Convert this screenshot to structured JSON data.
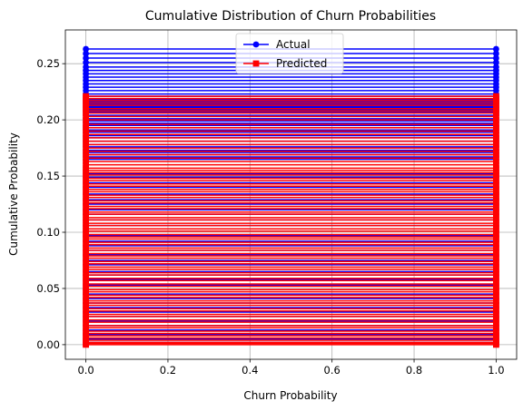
{
  "chart_data": {
    "type": "line",
    "title": "Cumulative Distribution of Churn Probabilities",
    "xlabel": "Churn Probability",
    "ylabel": "Cumulative Probability",
    "xlim": [
      -0.05,
      1.05
    ],
    "ylim": [
      -0.013,
      0.28
    ],
    "x_ticks": [
      0.0,
      0.2,
      0.4,
      0.6,
      0.8,
      1.0
    ],
    "x_tick_labels": [
      "0.0",
      "0.2",
      "0.4",
      "0.6",
      "0.8",
      "1.0"
    ],
    "y_ticks": [
      0.0,
      0.05,
      0.1,
      0.15,
      0.2,
      0.25
    ],
    "y_tick_labels": [
      "0.00",
      "0.05",
      "0.10",
      "0.15",
      "0.20",
      "0.25"
    ],
    "grid": true,
    "legend_position": "top-center",
    "x": [
      0,
      1
    ],
    "series": [
      {
        "name": "Actual",
        "color": "#0000ff",
        "marker": "circle",
        "levels": [
          0.263,
          0.259,
          0.255,
          0.251,
          0.247,
          0.244,
          0.241,
          0.238,
          0.235,
          0.232,
          0.229,
          0.226,
          0.223,
          0.221,
          0.218,
          0.216,
          0.214,
          0.212,
          0.211,
          0.209,
          0.207,
          0.204,
          0.201,
          0.199,
          0.197,
          0.195,
          0.193,
          0.191,
          0.189,
          0.186,
          0.184,
          0.181,
          0.178,
          0.176,
          0.173,
          0.171,
          0.169,
          0.167,
          0.165,
          0.152,
          0.149,
          0.144,
          0.14,
          0.134,
          0.129,
          0.125,
          0.12,
          0.116,
          0.111,
          0.106,
          0.101,
          0.097,
          0.092,
          0.088,
          0.084,
          0.08,
          0.075,
          0.071,
          0.065,
          0.062,
          0.058,
          0.053,
          0.049,
          0.045,
          0.041,
          0.037,
          0.033,
          0.029,
          0.025,
          0.021,
          0.017,
          0.013,
          0.009,
          0.005,
          0.002
        ]
      },
      {
        "name": "Predicted",
        "color": "#ff0000",
        "marker": "square",
        "levels": [
          0.221,
          0.219,
          0.217,
          0.215,
          0.213,
          0.21,
          0.208,
          0.206,
          0.203,
          0.2,
          0.196,
          0.193,
          0.19,
          0.187,
          0.184,
          0.181,
          0.178,
          0.175,
          0.172,
          0.169,
          0.166,
          0.163,
          0.16,
          0.157,
          0.155,
          0.153,
          0.151,
          0.148,
          0.146,
          0.143,
          0.141,
          0.138,
          0.136,
          0.133,
          0.131,
          0.128,
          0.126,
          0.123,
          0.121,
          0.118,
          0.116,
          0.113,
          0.111,
          0.108,
          0.106,
          0.103,
          0.101,
          0.098,
          0.096,
          0.094,
          0.091,
          0.089,
          0.086,
          0.084,
          0.081,
          0.079,
          0.077,
          0.074,
          0.072,
          0.069,
          0.067,
          0.064,
          0.062,
          0.059,
          0.057,
          0.054,
          0.052,
          0.049,
          0.047,
          0.044,
          0.042,
          0.039,
          0.037,
          0.035,
          0.032,
          0.03,
          0.027,
          0.025,
          0.022,
          0.02,
          0.017,
          0.015,
          0.012,
          0.01,
          0.008,
          0.006,
          0.004,
          0.002,
          0.001,
          0.0
        ]
      }
    ]
  }
}
